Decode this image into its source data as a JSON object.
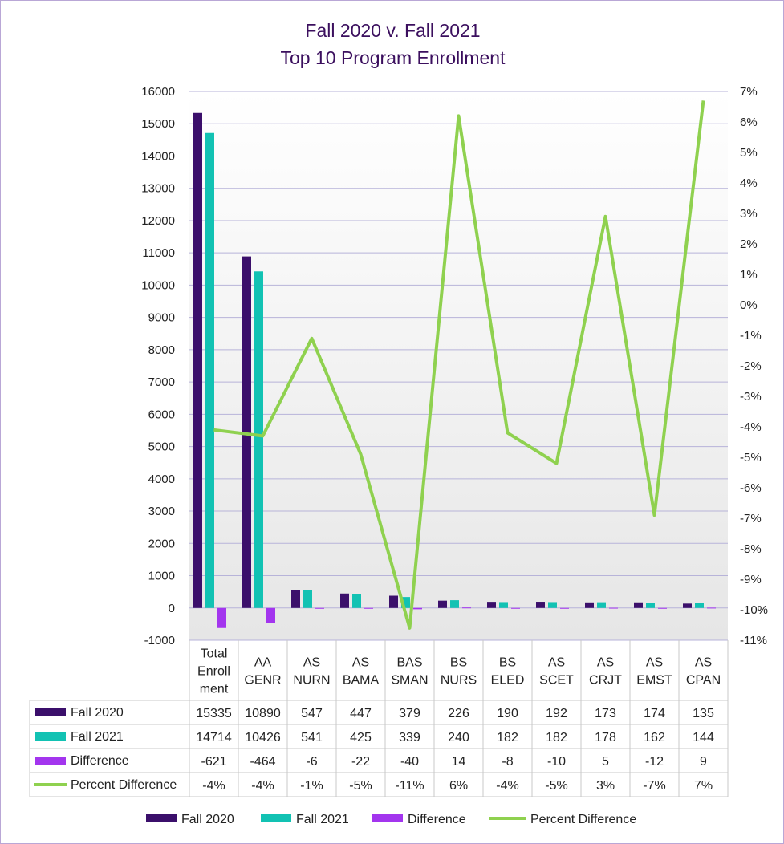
{
  "title": {
    "line1": "Fall 2020 v. Fall 2021",
    "line2": "Top 10 Program Enrollment"
  },
  "chart_data": {
    "type": "bar",
    "title": "Fall 2020 v. Fall 2021 Top 10 Program Enrollment",
    "categories": [
      [
        "Total",
        "Enroll",
        "ment"
      ],
      [
        "AA",
        "GENR"
      ],
      [
        "AS",
        "NURN"
      ],
      [
        "AS",
        "BAMA"
      ],
      [
        "BAS",
        "SMAN"
      ],
      [
        "BS",
        "NURS"
      ],
      [
        "BS",
        "ELED"
      ],
      [
        "AS",
        "SCET"
      ],
      [
        "AS",
        "CRJT"
      ],
      [
        "AS",
        "EMST"
      ],
      [
        "AS",
        "CPAN"
      ]
    ],
    "series": [
      {
        "name": "Fall 2020",
        "type": "bar",
        "axis": "left",
        "color": "#3b0f6b",
        "values": [
          15335,
          10890,
          547,
          447,
          379,
          226,
          190,
          192,
          173,
          174,
          135
        ]
      },
      {
        "name": "Fall 2021",
        "type": "bar",
        "axis": "left",
        "color": "#12c2b3",
        "values": [
          14714,
          10426,
          541,
          425,
          339,
          240,
          182,
          182,
          178,
          162,
          144
        ]
      },
      {
        "name": "Difference",
        "type": "bar",
        "axis": "left",
        "color": "#a335ee",
        "values": [
          -621,
          -464,
          -6,
          -22,
          -40,
          14,
          -8,
          -10,
          5,
          -12,
          9
        ]
      },
      {
        "name": "Percent Difference",
        "type": "line",
        "axis": "right",
        "color": "#8fd14f",
        "values": [
          -4.1,
          -4.3,
          -1.1,
          -4.9,
          -10.6,
          6.2,
          -4.2,
          -5.2,
          2.9,
          -6.9,
          6.7
        ]
      }
    ],
    "table_values": {
      "Fall 2020": [
        "15335",
        "10890",
        "547",
        "447",
        "379",
        "226",
        "190",
        "192",
        "173",
        "174",
        "135"
      ],
      "Fall 2021": [
        "14714",
        "10426",
        "541",
        "425",
        "339",
        "240",
        "182",
        "182",
        "178",
        "162",
        "144"
      ],
      "Difference": [
        "-621",
        "-464",
        "-6",
        "-22",
        "-40",
        "14",
        "-8",
        "-10",
        "5",
        "-12",
        "9"
      ],
      "Percent Difference": [
        "-4%",
        "-4%",
        "-1%",
        "-5%",
        "-11%",
        "6%",
        "-4%",
        "-5%",
        "3%",
        "-7%",
        "7%"
      ]
    },
    "y_left": {
      "min": -1000,
      "max": 16000,
      "step": 1000,
      "ticks": [
        "-1000",
        "0",
        "1000",
        "2000",
        "3000",
        "4000",
        "5000",
        "6000",
        "7000",
        "8000",
        "9000",
        "10000",
        "11000",
        "12000",
        "13000",
        "14000",
        "15000",
        "16000"
      ]
    },
    "y_right": {
      "min": -11,
      "max": 7,
      "step": 1,
      "ticks": [
        "-11%",
        "-10%",
        "-9%",
        "-8%",
        "-7%",
        "-6%",
        "-5%",
        "-4%",
        "-3%",
        "-2%",
        "-1%",
        "0%",
        "1%",
        "2%",
        "3%",
        "4%",
        "5%",
        "6%",
        "7%"
      ]
    },
    "grid": true,
    "legend": "bottom",
    "legend_entries": [
      "Fall 2020",
      "Fall 2021",
      "Difference",
      "Percent Difference"
    ],
    "data_table": true
  }
}
